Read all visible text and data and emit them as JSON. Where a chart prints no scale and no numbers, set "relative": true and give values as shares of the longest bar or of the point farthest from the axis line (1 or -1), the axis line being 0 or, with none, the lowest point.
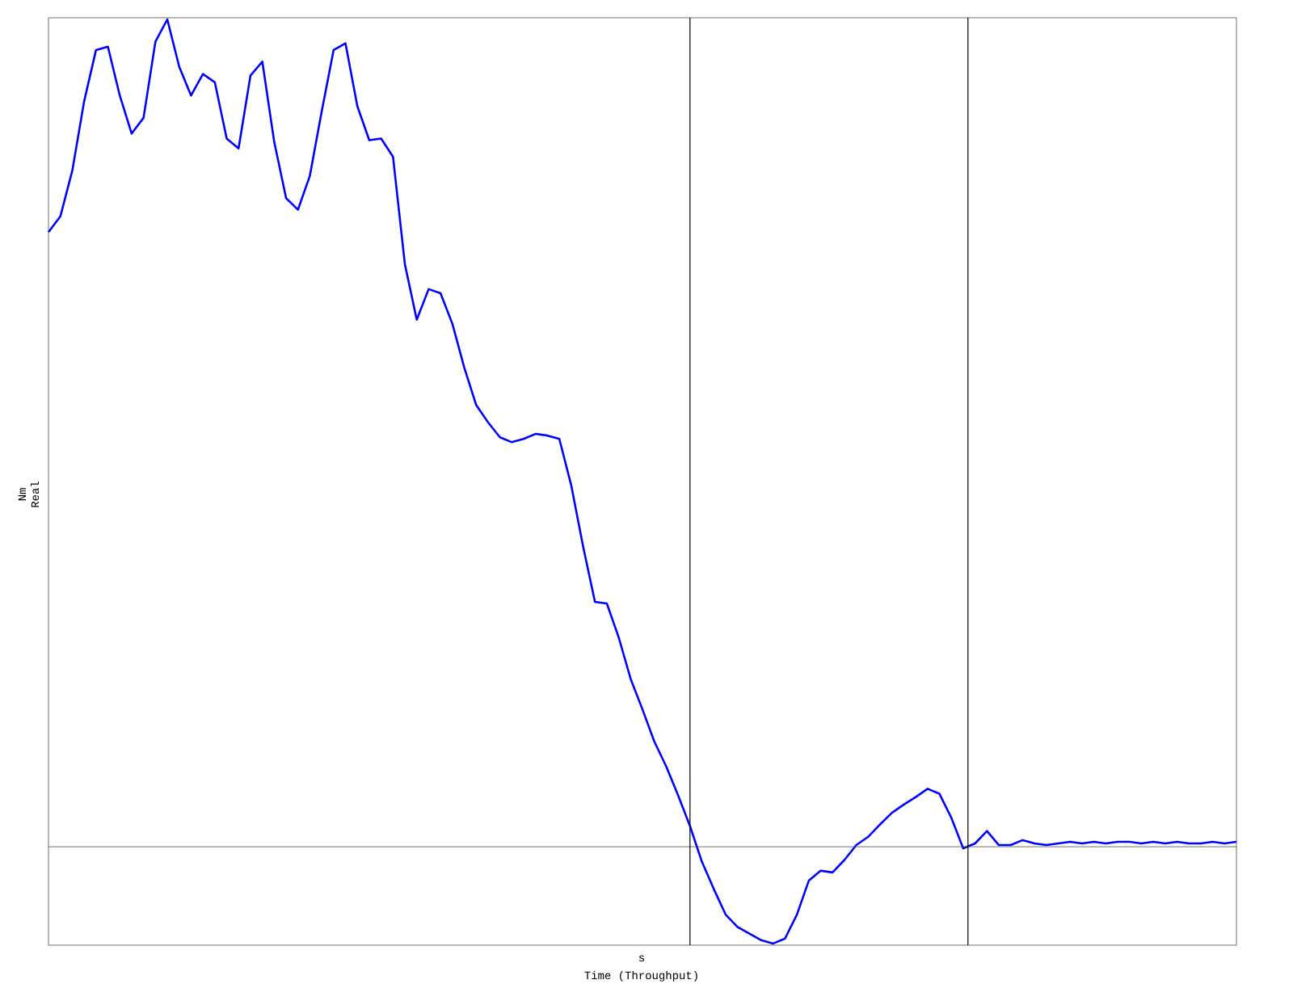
{
  "chart_data": {
    "type": "line",
    "relative": true,
    "xlabel": "Time (Throughput)",
    "ylabel": "Real",
    "annotations": [
      "Nm",
      "s"
    ],
    "categories": [
      null,
      null,
      null,
      null,
      null,
      null,
      null,
      null,
      null,
      null,
      null,
      null,
      null,
      null,
      null,
      null,
      null,
      null,
      null,
      null,
      null,
      null,
      null,
      null,
      null,
      null,
      null,
      null,
      null,
      null,
      null,
      null,
      null,
      null,
      null,
      null,
      null,
      null,
      null,
      null,
      null,
      null,
      null,
      null,
      null,
      null,
      null,
      null,
      null,
      null,
      null,
      null,
      null,
      null,
      null,
      null,
      null,
      null,
      null,
      null,
      null,
      null,
      null,
      null,
      null,
      null,
      null,
      null,
      null,
      null,
      null,
      null,
      null,
      null,
      null,
      null,
      null,
      null,
      null,
      null,
      null,
      null,
      null,
      null,
      null,
      null,
      null,
      null,
      null,
      null,
      null,
      null,
      null,
      null,
      null,
      null,
      null,
      null,
      null,
      null,
      null
    ],
    "series": [
      {
        "color": "#0000ff",
        "values": [
          0.743,
          0.762,
          0.817,
          0.901,
          0.963,
          0.967,
          0.908,
          0.862,
          0.881,
          0.973,
          1.0,
          0.943,
          0.908,
          0.934,
          0.924,
          0.856,
          0.844,
          0.932,
          0.949,
          0.852,
          0.784,
          0.77,
          0.811,
          0.889,
          0.963,
          0.971,
          0.895,
          0.854,
          0.856,
          0.834,
          0.704,
          0.637,
          0.674,
          0.669,
          0.632,
          0.579,
          0.534,
          0.513,
          0.495,
          0.489,
          0.493,
          0.499,
          0.497,
          0.493,
          0.437,
          0.363,
          0.296,
          0.294,
          0.253,
          0.203,
          0.166,
          0.127,
          0.097,
          0.062,
          0.025,
          -0.018,
          -0.051,
          -0.082,
          -0.097,
          -0.105,
          -0.113,
          -0.117,
          -0.111,
          -0.082,
          -0.041,
          -0.029,
          -0.031,
          -0.016,
          0.002,
          0.012,
          0.027,
          0.041,
          0.051,
          0.06,
          0.07,
          0.064,
          0.035,
          -0.002,
          0.004,
          0.019,
          0.002,
          0.002,
          0.008,
          0.004,
          0.002,
          0.004,
          0.006,
          0.004,
          0.006,
          0.004,
          0.006,
          0.006,
          0.004,
          0.006,
          0.004,
          0.006,
          0.004,
          0.004,
          0.006,
          0.004,
          0.006
        ]
      }
    ]
  }
}
